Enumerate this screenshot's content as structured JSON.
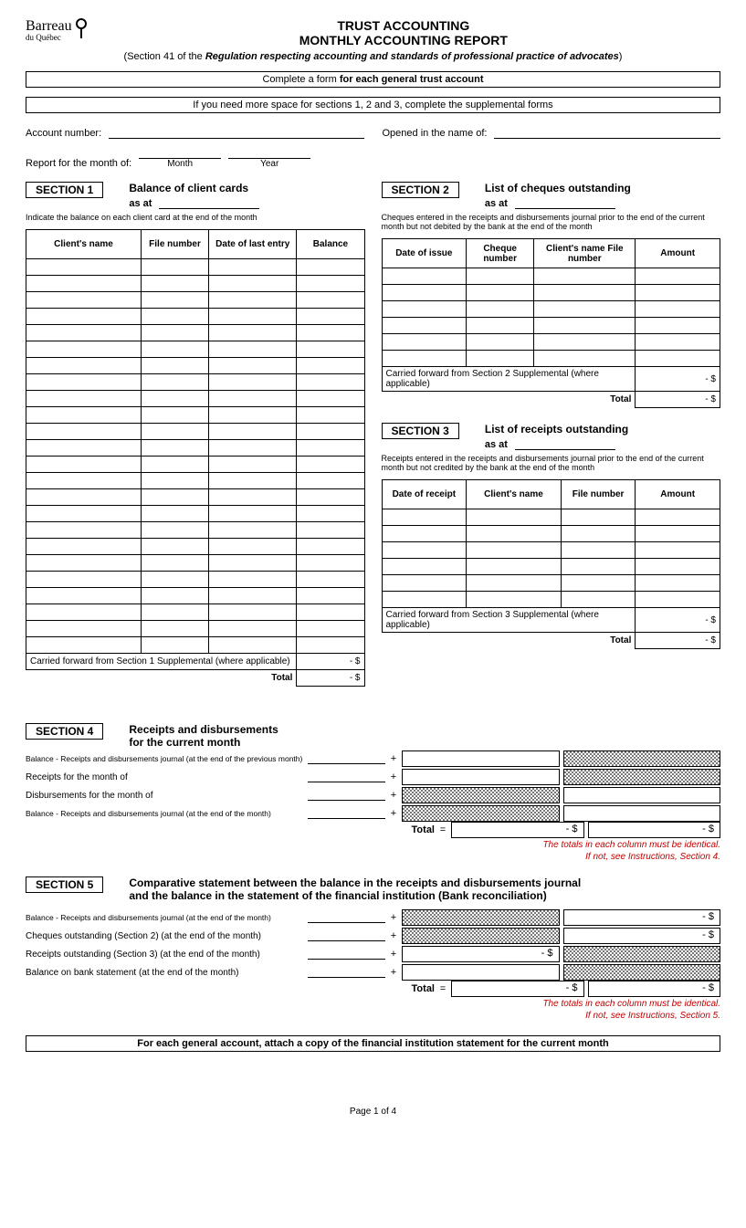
{
  "logo": {
    "name": "Barreau",
    "sub": "du Québec"
  },
  "header": {
    "line1": "TRUST ACCOUNTING",
    "line2": "MONTHLY ACCOUNTING REPORT",
    "line3_prefix": "(Section 41 of the ",
    "line3_italic": "Regulation respecting accounting and standards of professional practice of advocates",
    "line3_suffix": ")"
  },
  "bar1_prefix": "Complete a form ",
  "bar1_bold": "for each general trust account",
  "bar2": "If you need more space for sections 1, 2 and 3, complete the supplemental forms",
  "fields": {
    "account_number": "Account number:",
    "opened_in_name": "Opened in the name of:",
    "report_month": "Report for the month of:",
    "month": "Month",
    "year": "Year"
  },
  "section1": {
    "box": "SECTION 1",
    "title": "Balance of client cards",
    "as_at": "as at",
    "note": "Indicate the balance on each client card at the end of the month",
    "columns": [
      "Client's name",
      "File number",
      "Date of last entry",
      "Balance"
    ],
    "rows": 24,
    "carried": "Carried forward from Section 1 Supplemental (where applicable)",
    "total": "Total",
    "dash_dollar": "-   $"
  },
  "section2": {
    "box": "SECTION 2",
    "title": "List of cheques outstanding",
    "as_at": "as at",
    "note": "Cheques entered in the receipts and disbursements journal prior to the end of the current month but not debited by the bank at the end of the month",
    "columns": [
      "Date of issue",
      "Cheque number",
      "Client's name File number",
      "Amount"
    ],
    "rows": 6,
    "carried": "Carried forward from Section 2 Supplemental (where applicable)",
    "total": "Total",
    "dash_dollar": "-   $"
  },
  "section3": {
    "box": "SECTION 3",
    "title": "List of receipts outstanding",
    "as_at": "as at",
    "note": "Receipts entered in the receipts and disbursements journal prior to the end of the current month but not credited by the bank at the end of the month",
    "columns": [
      "Date of receipt",
      "Client's name",
      "File number",
      "Amount"
    ],
    "rows": 6,
    "carried": "Carried forward from Section 3 Supplemental (where applicable)",
    "total": "Total",
    "dash_dollar": "-   $"
  },
  "section4": {
    "box": "SECTION 4",
    "title_l1": "Receipts and disbursements",
    "title_l2": "for the current month",
    "rows": [
      {
        "label": "Balance - Receipts and disbursements journal (at the end of the previous month)",
        "tiny": true,
        "op": "+",
        "c1_shaded": false,
        "c2_shaded": true
      },
      {
        "label": "Receipts for the month of",
        "tiny": false,
        "op": "+",
        "c1_shaded": false,
        "c2_shaded": true
      },
      {
        "label": "Disbursements for the month of",
        "tiny": false,
        "op": "+",
        "c1_shaded": true,
        "c2_shaded": false
      },
      {
        "label": "Balance - Receipts and disbursements journal (at the end of the month)",
        "tiny": true,
        "op": "+",
        "c1_shaded": true,
        "c2_shaded": false
      }
    ],
    "total": "Total",
    "eq": "=",
    "dash_dollar": "-   $",
    "red1": "The totals in each column must be identical.",
    "red2": "If not, see Instructions, Section 4."
  },
  "section5": {
    "box": "SECTION 5",
    "title_l1": "Comparative statement between the balance in the receipts and disbursements journal",
    "title_l2": "and the balance in the statement of the financial institution (Bank reconciliation)",
    "rows": [
      {
        "label": "Balance - Receipts and disbursements journal (at the end of the month)",
        "tiny": true,
        "op": "+",
        "c1_shaded": true,
        "c1_val": "",
        "c2_shaded": false,
        "c2_val": "-   $"
      },
      {
        "label": "Cheques outstanding (Section 2) (at the end of the month)",
        "tiny": false,
        "op": "+",
        "c1_shaded": true,
        "c1_val": "",
        "c2_shaded": false,
        "c2_val": "-   $"
      },
      {
        "label": "Receipts outstanding (Section 3) (at the end of the month)",
        "tiny": false,
        "op": "+",
        "c1_shaded": false,
        "c1_val": "-   $",
        "c2_shaded": true,
        "c2_val": ""
      },
      {
        "label": "Balance on bank statement (at the end of the month)",
        "tiny": false,
        "op": "+",
        "c1_shaded": false,
        "c1_val": "",
        "c2_shaded": true,
        "c2_val": ""
      }
    ],
    "total": "Total",
    "eq": "=",
    "dash_dollar": "-   $",
    "red1": "The totals in each column must be identical.",
    "red2": "If not, see Instructions, Section 5."
  },
  "bar3": "For each general account, attach a copy of the financial institution statement for the current month",
  "page": "Page 1 of 4"
}
